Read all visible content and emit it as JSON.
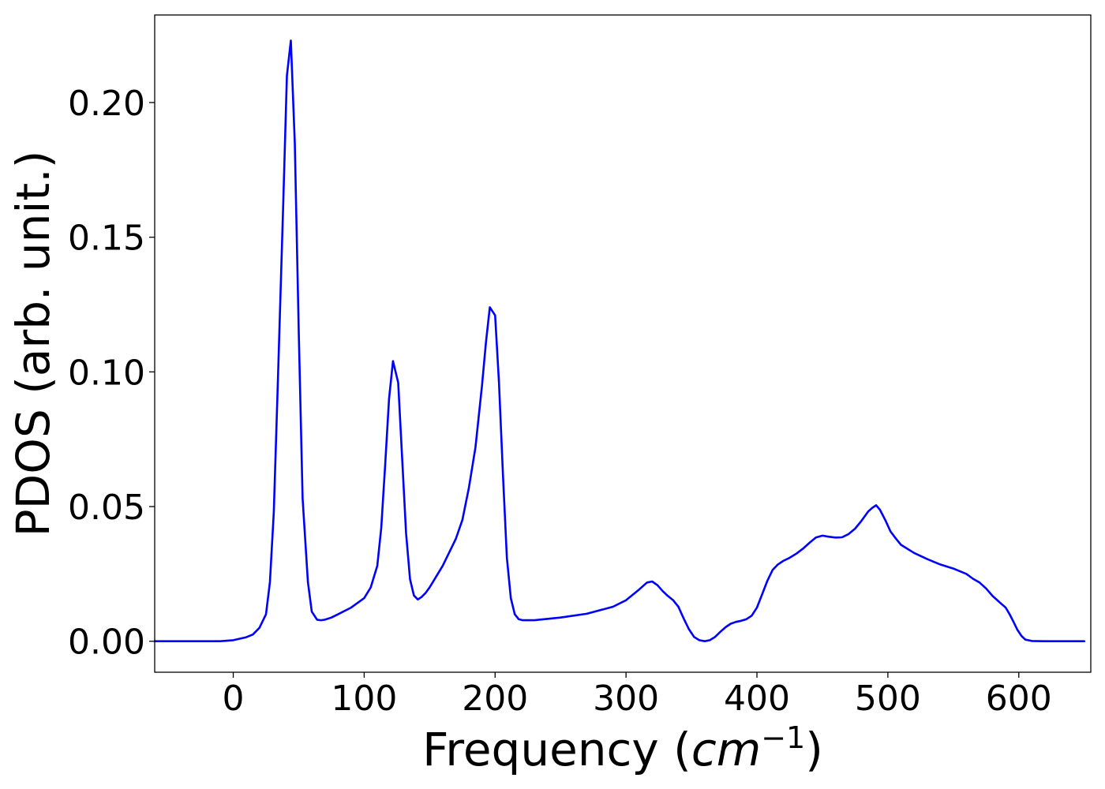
{
  "chart_data": {
    "type": "line",
    "title": "",
    "xlabel": "Frequency",
    "xlabel_unit_base": "cm",
    "xlabel_unit_exp": "−1",
    "ylabel": "PDOS (arb. unit.)",
    "xlim": [
      -60,
      655
    ],
    "ylim": [
      -0.0115,
      0.2325
    ],
    "grid": false,
    "line_color": "#0000ff",
    "x_ticks": [
      {
        "value": 0,
        "label": "0"
      },
      {
        "value": 100,
        "label": "100"
      },
      {
        "value": 200,
        "label": "200"
      },
      {
        "value": 300,
        "label": "300"
      },
      {
        "value": 400,
        "label": "400"
      },
      {
        "value": 500,
        "label": "500"
      },
      {
        "value": 600,
        "label": "600"
      }
    ],
    "y_ticks": [
      {
        "value": 0.0,
        "label": "0.00"
      },
      {
        "value": 0.05,
        "label": "0.05"
      },
      {
        "value": 0.1,
        "label": "0.10"
      },
      {
        "value": 0.15,
        "label": "0.15"
      },
      {
        "value": 0.2,
        "label": "0.20"
      }
    ],
    "series": [
      {
        "x": [
          -60,
          -10,
          0,
          10,
          15,
          20,
          25,
          28,
          31,
          34,
          38,
          41,
          44,
          47,
          50,
          53,
          57,
          60,
          64,
          67,
          70,
          75,
          80,
          90,
          100,
          105,
          110,
          113,
          116,
          119,
          122,
          126,
          129,
          132,
          135,
          138,
          141,
          144,
          147,
          150,
          155,
          160,
          165,
          170,
          175,
          180,
          185,
          190,
          193,
          196,
          200,
          203,
          206,
          209,
          212,
          215,
          218,
          221,
          225,
          230,
          250,
          270,
          290,
          300,
          310,
          316,
          320,
          324,
          328,
          332,
          336,
          340,
          344,
          348,
          352,
          356,
          360,
          364,
          368,
          372,
          376,
          380,
          384,
          388,
          392,
          396,
          400,
          404,
          408,
          412,
          416,
          420,
          425,
          430,
          435,
          440,
          445,
          450,
          455,
          460,
          465,
          470,
          475,
          480,
          485,
          488,
          491,
          494,
          498,
          502,
          506,
          510,
          520,
          530,
          540,
          550,
          560,
          565,
          570,
          575,
          580,
          585,
          590,
          593,
          596,
          599,
          602,
          605,
          610,
          620,
          650
        ],
        "y": [
          0.0,
          0.0,
          0.0004,
          0.0015,
          0.0025,
          0.005,
          0.01,
          0.022,
          0.048,
          0.095,
          0.16,
          0.21,
          0.223,
          0.185,
          0.115,
          0.053,
          0.022,
          0.011,
          0.008,
          0.0078,
          0.008,
          0.0088,
          0.01,
          0.0125,
          0.016,
          0.02,
          0.028,
          0.042,
          0.065,
          0.09,
          0.104,
          0.096,
          0.068,
          0.04,
          0.023,
          0.017,
          0.0155,
          0.0165,
          0.018,
          0.02,
          0.024,
          0.028,
          0.033,
          0.038,
          0.045,
          0.057,
          0.072,
          0.095,
          0.111,
          0.124,
          0.121,
          0.096,
          0.062,
          0.031,
          0.016,
          0.01,
          0.0082,
          0.0078,
          0.0078,
          0.0078,
          0.0088,
          0.0102,
          0.0128,
          0.0152,
          0.0192,
          0.0218,
          0.0222,
          0.0208,
          0.0186,
          0.0168,
          0.0152,
          0.0128,
          0.0085,
          0.0045,
          0.0016,
          0.0004,
          0.0,
          0.0004,
          0.0016,
          0.0035,
          0.0052,
          0.0065,
          0.0072,
          0.0076,
          0.0082,
          0.0095,
          0.0125,
          0.0175,
          0.0225,
          0.0265,
          0.0285,
          0.0298,
          0.031,
          0.0325,
          0.0343,
          0.0365,
          0.0385,
          0.0392,
          0.0388,
          0.0385,
          0.0386,
          0.0398,
          0.0418,
          0.0448,
          0.0482,
          0.0495,
          0.0505,
          0.0488,
          0.045,
          0.0408,
          0.0382,
          0.0358,
          0.0328,
          0.0305,
          0.0285,
          0.027,
          0.025,
          0.0232,
          0.0218,
          0.0196,
          0.0168,
          0.0146,
          0.0125,
          0.01,
          0.0072,
          0.0042,
          0.002,
          0.0006,
          0.0001,
          0.0,
          0.0
        ]
      }
    ]
  }
}
